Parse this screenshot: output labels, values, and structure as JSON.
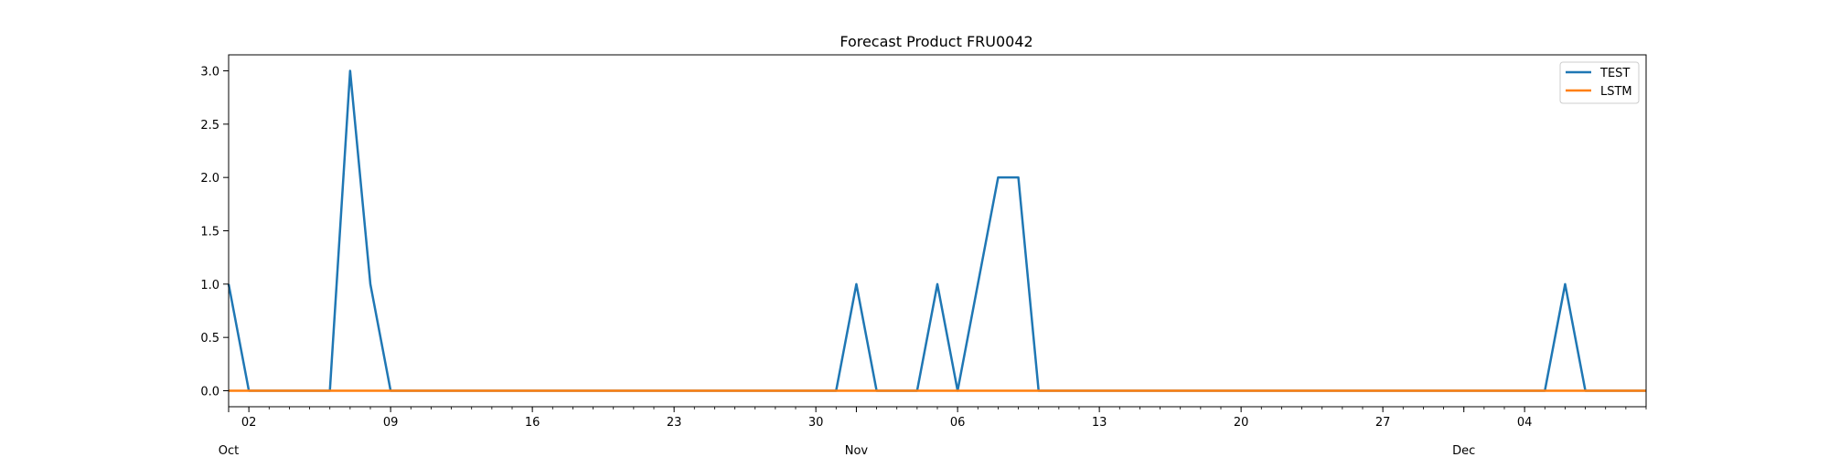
{
  "chart_data": {
    "type": "line",
    "title": "Forecast Product FRU0042",
    "xlabel": "",
    "ylabel": "",
    "x_start": "2023-10-01",
    "x_end": "2023-12-10",
    "ylim": [
      -0.15,
      3.15
    ],
    "yticks": [
      0.0,
      0.5,
      1.0,
      1.5,
      2.0,
      2.5,
      3.0
    ],
    "ytick_labels": [
      "0.0",
      "0.5",
      "1.0",
      "1.5",
      "2.0",
      "2.5",
      "3.0"
    ],
    "xticks_major": [
      "2023-10-02",
      "2023-10-09",
      "2023-10-16",
      "2023-10-23",
      "2023-10-30",
      "2023-11-06",
      "2023-11-13",
      "2023-11-20",
      "2023-11-27",
      "2023-12-04"
    ],
    "xtick_labels": [
      "02",
      "09",
      "16",
      "23",
      "30",
      "06",
      "13",
      "20",
      "27",
      "04"
    ],
    "month_labels": [
      {
        "date": "2023-10-01",
        "label": "Oct"
      },
      {
        "date": "2023-11-01",
        "label": "Nov"
      },
      {
        "date": "2023-12-01",
        "label": "Dec"
      }
    ],
    "grid": false,
    "legend_position": "top-right",
    "series": [
      {
        "name": "TEST",
        "color": "#1f77b4",
        "points": [
          [
            "2023-10-01",
            1
          ],
          [
            "2023-10-02",
            0
          ],
          [
            "2023-10-06",
            0
          ],
          [
            "2023-10-07",
            3
          ],
          [
            "2023-10-08",
            1
          ],
          [
            "2023-10-09",
            0
          ],
          [
            "2023-10-31",
            0
          ],
          [
            "2023-11-01",
            1
          ],
          [
            "2023-11-02",
            0
          ],
          [
            "2023-11-04",
            0
          ],
          [
            "2023-11-05",
            1
          ],
          [
            "2023-11-06",
            0
          ],
          [
            "2023-11-08",
            2
          ],
          [
            "2023-11-09",
            2
          ],
          [
            "2023-11-10",
            0
          ],
          [
            "2023-12-05",
            0
          ],
          [
            "2023-12-06",
            1
          ],
          [
            "2023-12-07",
            0
          ],
          [
            "2023-12-10",
            0
          ]
        ]
      },
      {
        "name": "LSTM",
        "color": "#ff7f0e",
        "points": [
          [
            "2023-10-01",
            0
          ],
          [
            "2023-12-10",
            0
          ]
        ]
      }
    ]
  }
}
